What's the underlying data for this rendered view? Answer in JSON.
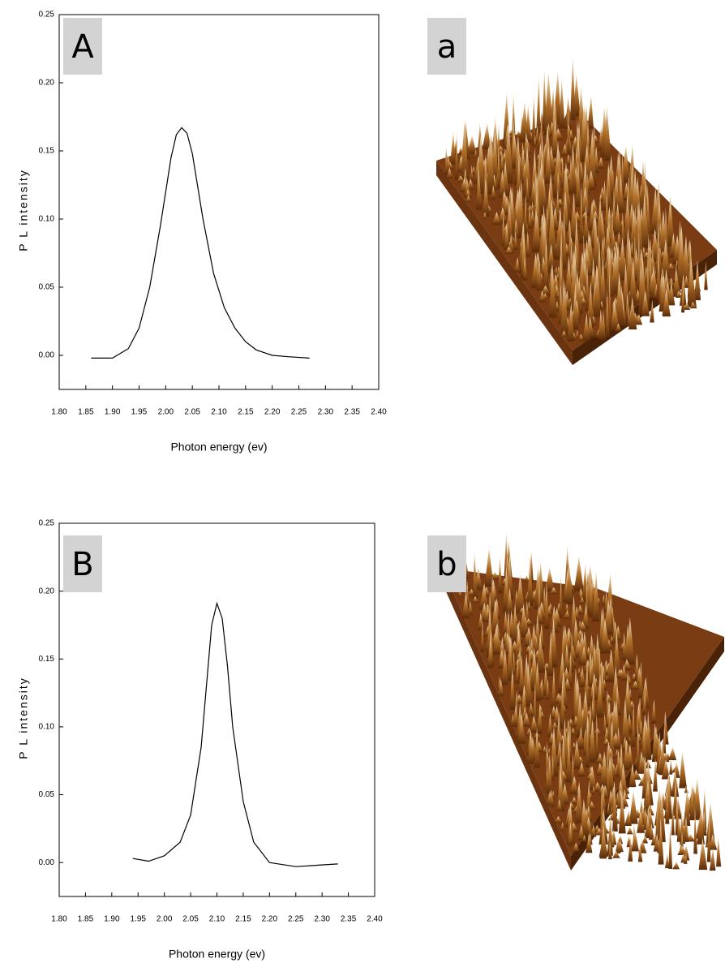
{
  "chart_data": [
    {
      "type": "line",
      "panel_label": "A",
      "xlabel": "Photon energy (ev)",
      "ylabel": "P L intensity",
      "color": "#000000",
      "x": [
        1.86,
        1.9,
        1.93,
        1.95,
        1.97,
        1.99,
        2.01,
        2.02,
        2.03,
        2.04,
        2.05,
        2.07,
        2.09,
        2.11,
        2.13,
        2.15,
        2.17,
        2.2,
        2.23,
        2.27
      ],
      "values": [
        -0.002,
        -0.002,
        0.005,
        0.02,
        0.05,
        0.095,
        0.145,
        0.162,
        0.167,
        0.163,
        0.148,
        0.1,
        0.06,
        0.035,
        0.02,
        0.01,
        0.004,
        0.0,
        -0.001,
        -0.002
      ],
      "xlim": [
        1.8,
        2.4
      ],
      "ylim": [
        -0.025,
        0.25
      ],
      "xticks": [
        {
          "value": 1.8,
          "label": "1.80"
        },
        1.85,
        {
          "value": 1.9,
          "label": "1.90"
        },
        1.95,
        {
          "value": 2,
          "label": "2.00"
        },
        2.05,
        {
          "value": 2.1,
          "label": "2.10"
        },
        2.15,
        {
          "value": 2.2,
          "label": "2.20"
        },
        2.25,
        {
          "value": 2.3,
          "label": "2.30"
        },
        2.35,
        {
          "value": 2.4,
          "label": "2.40"
        }
      ],
      "yticks": [
        {
          "value": 0,
          "label": "0.00"
        },
        0.05,
        {
          "value": 0.1,
          "label": "0.10"
        },
        0.15,
        {
          "value": 0.2,
          "label": "0.20"
        },
        0.25
      ]
    },
    {
      "type": "line",
      "panel_label": "B",
      "xlabel": "Photon energy (ev)",
      "ylabel": "P L intensity",
      "color": "#000000",
      "x": [
        1.94,
        1.97,
        2.0,
        2.03,
        2.05,
        2.07,
        2.08,
        2.09,
        2.1,
        2.11,
        2.12,
        2.13,
        2.15,
        2.17,
        2.2,
        2.25,
        2.29,
        2.33
      ],
      "values": [
        0.003,
        0.001,
        0.005,
        0.015,
        0.035,
        0.085,
        0.13,
        0.175,
        0.191,
        0.18,
        0.145,
        0.1,
        0.045,
        0.015,
        0.0,
        -0.003,
        -0.002,
        -0.001
      ],
      "xlim": [
        1.8,
        2.4
      ],
      "ylim": [
        -0.025,
        0.25
      ],
      "xticks": [
        {
          "value": 1.8,
          "label": "1.80"
        },
        1.85,
        {
          "value": 1.9,
          "label": "1.90"
        },
        1.95,
        {
          "value": 2,
          "label": "2.00"
        },
        2.05,
        {
          "value": 2.1,
          "label": "2.10"
        },
        2.15,
        {
          "value": 2.2,
          "label": "2.20"
        },
        2.25,
        {
          "value": 2.3,
          "label": "2.30"
        },
        2.35,
        {
          "value": 2.4,
          "label": "2.40"
        }
      ],
      "yticks": [
        {
          "value": 0,
          "label": "0.00"
        },
        0.05,
        {
          "value": 0.1,
          "label": "0.10"
        },
        0.15,
        {
          "value": 0.2,
          "label": "0.20"
        },
        0.25
      ]
    }
  ],
  "images": [
    {
      "label": "a"
    },
    {
      "label": "b"
    }
  ]
}
